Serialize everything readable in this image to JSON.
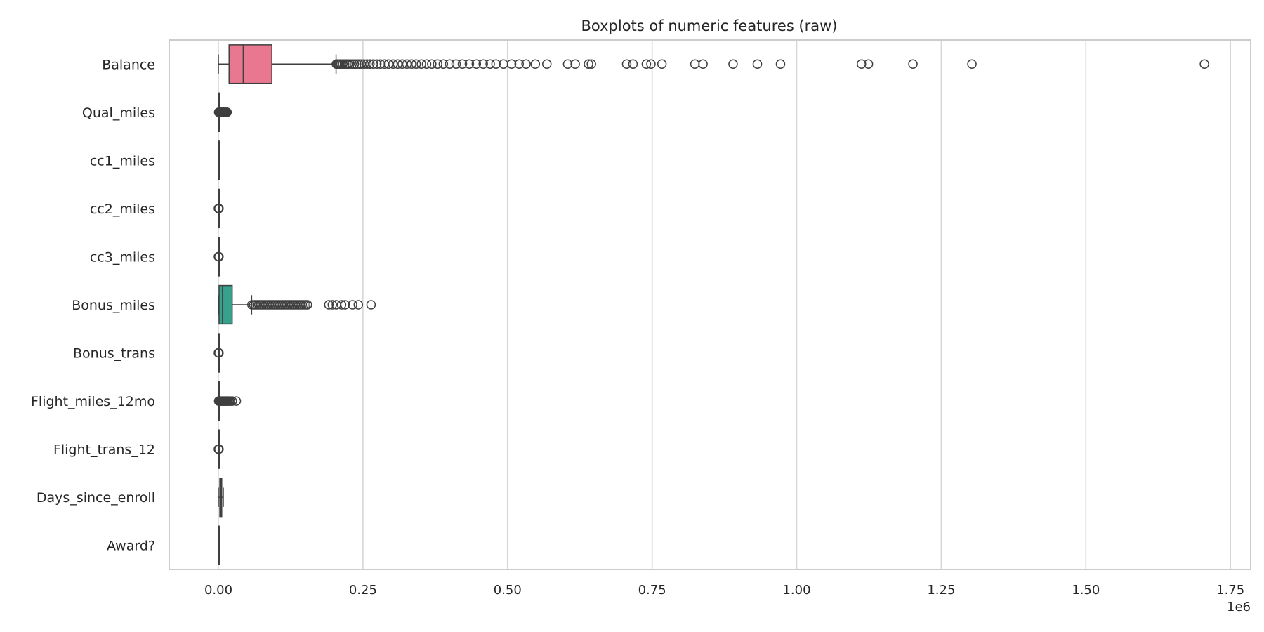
{
  "chart_data": {
    "type": "boxplot",
    "orientation": "horizontal",
    "title": "Boxplots of numeric features (raw)",
    "xlabel": "",
    "ylabel": "",
    "x_scale_offset": "1e6",
    "xlim": [
      -0.085,
      1.785
    ],
    "x_ticks": [
      0.0,
      0.25,
      0.5,
      0.75,
      1.0,
      1.25,
      1.5,
      1.75
    ],
    "x_tick_labels": [
      "0.00",
      "0.25",
      "0.50",
      "0.75",
      "1.00",
      "1.25",
      "1.50",
      "1.75"
    ],
    "grid": "x",
    "legend": "none",
    "series": [
      {
        "name": "Balance",
        "color": "#e8788f",
        "q1": 0.0185,
        "median": 0.043,
        "q3": 0.0925,
        "whisker_low": 0.0,
        "whisker_high": 0.2035,
        "outliers": [
          0.204,
          0.206,
          0.208,
          0.21,
          0.212,
          0.215,
          0.218,
          0.221,
          0.224,
          0.227,
          0.231,
          0.235,
          0.239,
          0.243,
          0.247,
          0.252,
          0.257,
          0.262,
          0.268,
          0.274,
          0.28,
          0.287,
          0.294,
          0.302,
          0.31,
          0.318,
          0.326,
          0.334,
          0.342,
          0.351,
          0.36,
          0.369,
          0.379,
          0.389,
          0.4,
          0.411,
          0.422,
          0.434,
          0.446,
          0.458,
          0.47,
          0.48,
          0.493,
          0.507,
          0.52,
          0.532,
          0.548,
          0.568,
          0.604,
          0.617,
          0.64,
          0.645,
          0.706,
          0.717,
          0.74,
          0.748,
          0.767,
          0.824,
          0.838,
          0.89,
          0.932,
          0.972,
          1.112,
          1.124,
          1.201,
          1.303,
          1.705
        ]
      },
      {
        "name": "Qual_miles",
        "color": "#c98f3a",
        "q1": 0.0,
        "median": 0.0,
        "q3": 0.0,
        "whisker_low": 0.0,
        "whisker_high": 0.0,
        "outliers": [
          0.0005,
          0.0015,
          0.003,
          0.0045,
          0.006,
          0.0075,
          0.009,
          0.0105,
          0.012,
          0.0135,
          0.015
        ]
      },
      {
        "name": "cc1_miles",
        "color": "#a39b33",
        "q1": 0.0,
        "median": 0.0,
        "q3": 0.0,
        "whisker_low": 0.0,
        "whisker_high": 0.0,
        "outliers": []
      },
      {
        "name": "cc2_miles",
        "color": "#7aa033",
        "q1": 0.0,
        "median": 0.0,
        "q3": 0.0,
        "whisker_low": 0.0,
        "whisker_high": 0.0,
        "outliers": [
          0.0,
          0.0005,
          0.001
        ]
      },
      {
        "name": "cc3_miles",
        "color": "#3aa55a",
        "q1": 0.0,
        "median": 0.0,
        "q3": 0.0,
        "whisker_low": 0.0,
        "whisker_high": 0.0,
        "outliers": [
          0.0,
          0.0005,
          0.001
        ]
      },
      {
        "name": "Bonus_miles",
        "color": "#36a28c",
        "q1": 0.0012,
        "median": 0.0071,
        "q3": 0.0239,
        "whisker_low": 0.0,
        "whisker_high": 0.0575,
        "outliers": [
          0.058,
          0.061,
          0.064,
          0.067,
          0.07,
          0.073,
          0.076,
          0.079,
          0.082,
          0.085,
          0.088,
          0.091,
          0.094,
          0.097,
          0.1,
          0.103,
          0.106,
          0.109,
          0.112,
          0.115,
          0.118,
          0.121,
          0.124,
          0.127,
          0.13,
          0.133,
          0.136,
          0.139,
          0.142,
          0.145,
          0.148,
          0.151,
          0.154,
          0.191,
          0.197,
          0.204,
          0.213,
          0.219,
          0.232,
          0.242,
          0.264
        ]
      },
      {
        "name": "Bonus_trans",
        "color": "#38a1aa",
        "q1": 0.0,
        "median": 0.0,
        "q3": 0.0,
        "whisker_low": 0.0,
        "whisker_high": 0.0,
        "outliers": [
          0.0,
          0.0005,
          0.001
        ]
      },
      {
        "name": "Flight_miles_12mo",
        "color": "#3d9ec9",
        "q1": 0.0,
        "median": 0.0,
        "q3": 0.0,
        "whisker_low": 0.0,
        "whisker_high": 0.0,
        "outliers": [
          0.0005,
          0.002,
          0.0035,
          0.005,
          0.0065,
          0.008,
          0.0095,
          0.011,
          0.0125,
          0.014,
          0.0155,
          0.017,
          0.019,
          0.021,
          0.024,
          0.031
        ]
      },
      {
        "name": "Flight_trans_12",
        "color": "#7b98e0",
        "q1": 0.0,
        "median": 0.0,
        "q3": 0.0,
        "whisker_low": 0.0,
        "whisker_high": 0.0,
        "outliers": [
          0.0,
          0.0005,
          0.001
        ]
      },
      {
        "name": "Days_since_enroll",
        "color": "#b48adc",
        "q1": 0.0025,
        "median": 0.0042,
        "q3": 0.0058,
        "whisker_low": 0.0,
        "whisker_high": 0.0085,
        "outliers": []
      },
      {
        "name": "Award?",
        "color": "#dd78c5",
        "q1": 0.0,
        "median": 0.0,
        "q3": 0.0,
        "whisker_low": 0.0,
        "whisker_high": 0.0,
        "outliers": []
      }
    ]
  }
}
